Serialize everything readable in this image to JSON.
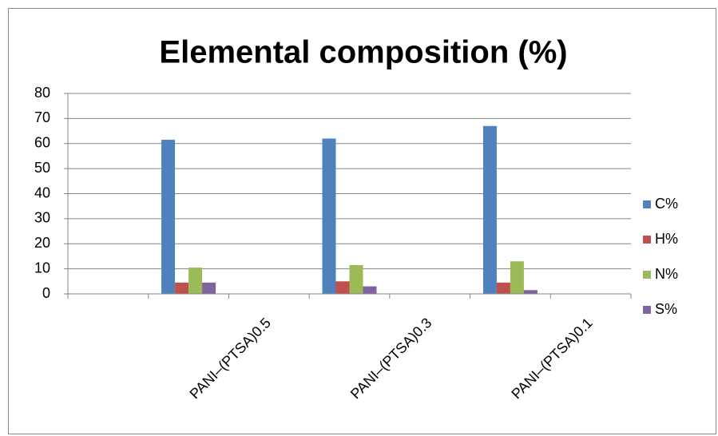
{
  "chart_data": {
    "type": "bar",
    "title": "Elemental composition (%)",
    "categories": [
      null,
      null,
      "PANI–(PTSA)0.5",
      null,
      "PANI–(PTSA)0.3",
      null,
      "PANI–(PTSA)0.1"
    ],
    "series": [
      {
        "name": "C%",
        "color": "#4f81bd",
        "values": [
          null,
          61.5,
          null,
          62,
          null,
          67,
          null
        ]
      },
      {
        "name": "H%",
        "color": "#c0504d",
        "values": [
          null,
          4.5,
          null,
          5,
          null,
          4.5,
          null
        ]
      },
      {
        "name": "N%",
        "color": "#9bbb59",
        "values": [
          null,
          10.5,
          null,
          11.5,
          null,
          13,
          null
        ]
      },
      {
        "name": "S%",
        "color": "#8064a2",
        "values": [
          null,
          4.5,
          null,
          3,
          null,
          1.5,
          null
        ]
      }
    ],
    "ylim": [
      0,
      80
    ],
    "yticks": [
      0,
      10,
      20,
      30,
      40,
      50,
      60,
      70,
      80
    ],
    "grid": true,
    "legend": "right"
  }
}
